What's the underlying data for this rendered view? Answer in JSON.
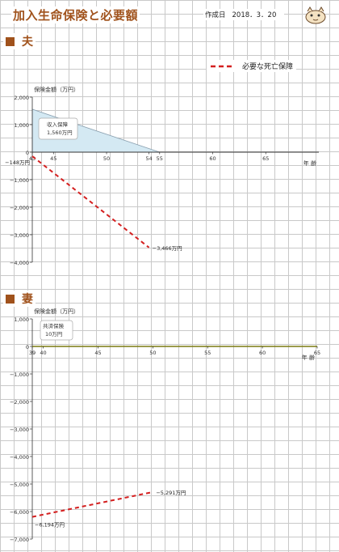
{
  "header": {
    "title": "加入生命保険と必要額",
    "date_label": "作成日",
    "date_value": "2018．3．20"
  },
  "legend": {
    "label": "必要な死亡保障",
    "color": "#d42020",
    "style": "dashed"
  },
  "sections": [
    {
      "heading": "夫"
    },
    {
      "heading": "妻"
    }
  ],
  "chart_data": [
    {
      "type": "line",
      "ylabel": "保険金額（万円）",
      "xlabel": "年 齢",
      "ylim": [
        -4000,
        2000
      ],
      "yticks": [
        2000,
        1000,
        0,
        -1000,
        -2000,
        -3000,
        -4000
      ],
      "ytick_labels": [
        "2,000",
        "1,000",
        "0",
        "−1,000",
        "−2,000",
        "−3,000",
        "−4,000"
      ],
      "xlim": [
        43,
        70
      ],
      "xticks": [
        43,
        45,
        50,
        54,
        55,
        60,
        65
      ],
      "xtick_labels": [
        "43",
        "45",
        "50",
        "54",
        "55",
        "60",
        "65"
      ],
      "series": [
        {
          "name": "必要な死亡保障",
          "x": [
            43,
            54
          ],
          "y": [
            -148,
            -3466
          ],
          "start_label": "−148万円",
          "end_label": "−3,466万円"
        }
      ],
      "area": {
        "label": "収入保障",
        "value_label": "1,560万円",
        "x": [
          43,
          55
        ],
        "y": [
          1560,
          0
        ],
        "color": "#d4e9f3"
      },
      "grid": true
    },
    {
      "type": "line",
      "ylabel": "保険金額（万円）",
      "xlabel": "年 齢",
      "ylim": [
        -7000,
        1000
      ],
      "yticks": [
        1000,
        0,
        -1000,
        -2000,
        -3000,
        -4000,
        -5000,
        -6000,
        -7000
      ],
      "ytick_labels": [
        "1,000",
        "0",
        "−1,000",
        "−2,000",
        "−3,000",
        "−4,000",
        "−5,000",
        "−6,000",
        "−7,000"
      ],
      "xlim": [
        39,
        65
      ],
      "xticks": [
        39,
        40,
        45,
        50,
        55,
        60,
        65
      ],
      "xtick_labels": [
        "39",
        "40",
        "45",
        "50",
        "55",
        "60",
        "65"
      ],
      "series": [
        {
          "name": "必要な死亡保障",
          "x": [
            39,
            50
          ],
          "y": [
            -6194,
            -5291
          ],
          "start_label": "−6,194万円",
          "end_label": "−5,291万円"
        }
      ],
      "callout": {
        "label": "共済保険",
        "value_label": "10万円",
        "value": 10
      },
      "zero_line_color": "#7a7a10",
      "grid": true
    }
  ]
}
